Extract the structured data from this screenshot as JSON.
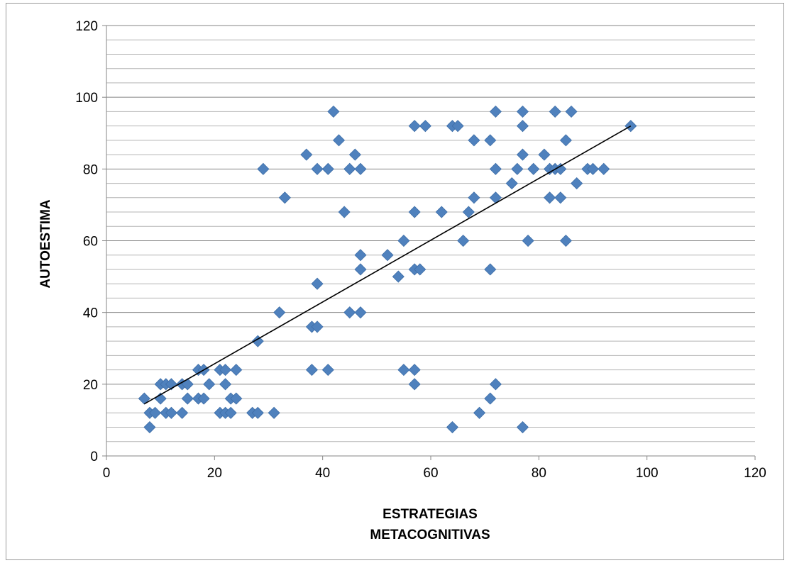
{
  "chart_data": {
    "type": "scatter",
    "title": "",
    "xlabel_lines": [
      "ESTRATEGIAS",
      "METACOGNITIVAS"
    ],
    "ylabel": "AUTOESTIMA",
    "xlim": [
      0,
      120
    ],
    "ylim": [
      0,
      120
    ],
    "x_ticks": [
      "0",
      "20",
      "40",
      "60",
      "80",
      "100",
      "120"
    ],
    "y_ticks": [
      "0",
      "20",
      "40",
      "60",
      "80",
      "100",
      "120"
    ],
    "y_minor_step": 4,
    "grid": true,
    "legend": "none",
    "marker": "diamond",
    "point_color": "#4f81bd",
    "trendline": {
      "type": "linear",
      "x0": 7,
      "y0": 14.5,
      "x1": 97,
      "y1": 92,
      "color": "#000000"
    },
    "points": [
      {
        "x": 7,
        "y": 16
      },
      {
        "x": 8,
        "y": 12
      },
      {
        "x": 8,
        "y": 8
      },
      {
        "x": 9,
        "y": 12
      },
      {
        "x": 10,
        "y": 20
      },
      {
        "x": 10,
        "y": 16
      },
      {
        "x": 11,
        "y": 20
      },
      {
        "x": 11,
        "y": 12
      },
      {
        "x": 12,
        "y": 20
      },
      {
        "x": 12,
        "y": 12
      },
      {
        "x": 14,
        "y": 20
      },
      {
        "x": 14,
        "y": 12
      },
      {
        "x": 15,
        "y": 20
      },
      {
        "x": 15,
        "y": 16
      },
      {
        "x": 17,
        "y": 24
      },
      {
        "x": 17,
        "y": 16
      },
      {
        "x": 18,
        "y": 24
      },
      {
        "x": 18,
        "y": 16
      },
      {
        "x": 19,
        "y": 20
      },
      {
        "x": 21,
        "y": 24
      },
      {
        "x": 21,
        "y": 12
      },
      {
        "x": 22,
        "y": 24
      },
      {
        "x": 22,
        "y": 20
      },
      {
        "x": 22,
        "y": 12
      },
      {
        "x": 23,
        "y": 16
      },
      {
        "x": 23,
        "y": 12
      },
      {
        "x": 24,
        "y": 24
      },
      {
        "x": 24,
        "y": 16
      },
      {
        "x": 27,
        "y": 12
      },
      {
        "x": 28,
        "y": 32
      },
      {
        "x": 28,
        "y": 12
      },
      {
        "x": 29,
        "y": 80
      },
      {
        "x": 31,
        "y": 12
      },
      {
        "x": 32,
        "y": 40
      },
      {
        "x": 33,
        "y": 72
      },
      {
        "x": 37,
        "y": 84
      },
      {
        "x": 38,
        "y": 36
      },
      {
        "x": 38,
        "y": 24
      },
      {
        "x": 39,
        "y": 80
      },
      {
        "x": 39,
        "y": 48
      },
      {
        "x": 39,
        "y": 36
      },
      {
        "x": 41,
        "y": 80
      },
      {
        "x": 41,
        "y": 24
      },
      {
        "x": 42,
        "y": 96
      },
      {
        "x": 43,
        "y": 88
      },
      {
        "x": 44,
        "y": 68
      },
      {
        "x": 45,
        "y": 80
      },
      {
        "x": 45,
        "y": 40
      },
      {
        "x": 46,
        "y": 84
      },
      {
        "x": 47,
        "y": 80
      },
      {
        "x": 47,
        "y": 56
      },
      {
        "x": 47,
        "y": 52
      },
      {
        "x": 47,
        "y": 40
      },
      {
        "x": 52,
        "y": 56
      },
      {
        "x": 54,
        "y": 50
      },
      {
        "x": 55,
        "y": 60
      },
      {
        "x": 55,
        "y": 24
      },
      {
        "x": 57,
        "y": 92
      },
      {
        "x": 57,
        "y": 68
      },
      {
        "x": 57,
        "y": 52
      },
      {
        "x": 57,
        "y": 24
      },
      {
        "x": 57,
        "y": 20
      },
      {
        "x": 58,
        "y": 52
      },
      {
        "x": 59,
        "y": 92
      },
      {
        "x": 62,
        "y": 68
      },
      {
        "x": 64,
        "y": 92
      },
      {
        "x": 64,
        "y": 8
      },
      {
        "x": 65,
        "y": 92
      },
      {
        "x": 66,
        "y": 60
      },
      {
        "x": 67,
        "y": 68
      },
      {
        "x": 68,
        "y": 88
      },
      {
        "x": 68,
        "y": 72
      },
      {
        "x": 69,
        "y": 12
      },
      {
        "x": 71,
        "y": 88
      },
      {
        "x": 71,
        "y": 52
      },
      {
        "x": 71,
        "y": 16
      },
      {
        "x": 72,
        "y": 96
      },
      {
        "x": 72,
        "y": 80
      },
      {
        "x": 72,
        "y": 72
      },
      {
        "x": 72,
        "y": 20
      },
      {
        "x": 75,
        "y": 76
      },
      {
        "x": 76,
        "y": 80
      },
      {
        "x": 77,
        "y": 96
      },
      {
        "x": 77,
        "y": 92
      },
      {
        "x": 77,
        "y": 84
      },
      {
        "x": 77,
        "y": 8
      },
      {
        "x": 78,
        "y": 60
      },
      {
        "x": 79,
        "y": 80
      },
      {
        "x": 81,
        "y": 84
      },
      {
        "x": 82,
        "y": 80
      },
      {
        "x": 82,
        "y": 72
      },
      {
        "x": 83,
        "y": 96
      },
      {
        "x": 83,
        "y": 80
      },
      {
        "x": 84,
        "y": 80
      },
      {
        "x": 84,
        "y": 72
      },
      {
        "x": 85,
        "y": 88
      },
      {
        "x": 85,
        "y": 60
      },
      {
        "x": 86,
        "y": 96
      },
      {
        "x": 87,
        "y": 76
      },
      {
        "x": 89,
        "y": 80
      },
      {
        "x": 90,
        "y": 80
      },
      {
        "x": 92,
        "y": 80
      },
      {
        "x": 97,
        "y": 92
      }
    ]
  }
}
